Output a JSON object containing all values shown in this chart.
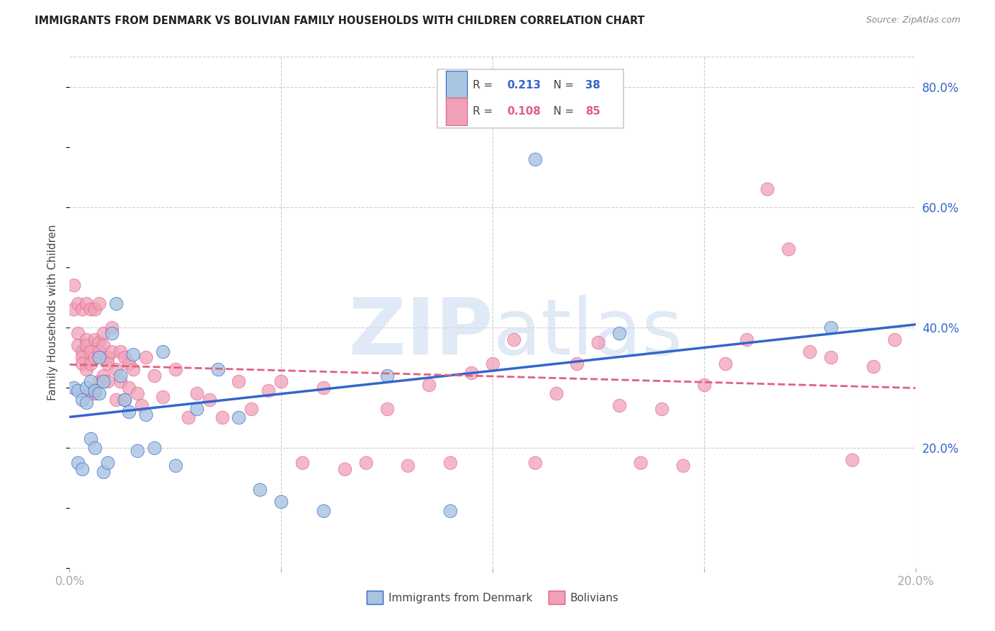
{
  "title": "IMMIGRANTS FROM DENMARK VS BOLIVIAN FAMILY HOUSEHOLDS WITH CHILDREN CORRELATION CHART",
  "source": "Source: ZipAtlas.com",
  "ylabel": "Family Households with Children",
  "xmin": 0.0,
  "xmax": 0.2,
  "ymin": 0.0,
  "ymax": 0.85,
  "color_denmark": "#a8c4e0",
  "color_bolivia": "#f0a0b8",
  "color_line_denmark": "#3366cc",
  "color_line_bolivia": "#e06080",
  "legend_label1": "Immigrants from Denmark",
  "legend_label2": "Bolivians",
  "denmark_x": [
    0.001,
    0.002,
    0.002,
    0.003,
    0.003,
    0.004,
    0.004,
    0.005,
    0.005,
    0.006,
    0.006,
    0.007,
    0.007,
    0.008,
    0.008,
    0.009,
    0.01,
    0.011,
    0.012,
    0.013,
    0.014,
    0.015,
    0.016,
    0.018,
    0.02,
    0.022,
    0.025,
    0.03,
    0.035,
    0.04,
    0.045,
    0.05,
    0.06,
    0.075,
    0.09,
    0.11,
    0.13,
    0.18
  ],
  "denmark_y": [
    0.3,
    0.295,
    0.175,
    0.165,
    0.28,
    0.3,
    0.275,
    0.31,
    0.215,
    0.295,
    0.2,
    0.35,
    0.29,
    0.31,
    0.16,
    0.175,
    0.39,
    0.44,
    0.32,
    0.28,
    0.26,
    0.355,
    0.195,
    0.255,
    0.2,
    0.36,
    0.17,
    0.265,
    0.33,
    0.25,
    0.13,
    0.11,
    0.095,
    0.32,
    0.095,
    0.68,
    0.39,
    0.4
  ],
  "bolivia_x": [
    0.001,
    0.001,
    0.002,
    0.002,
    0.002,
    0.003,
    0.003,
    0.003,
    0.003,
    0.004,
    0.004,
    0.004,
    0.004,
    0.005,
    0.005,
    0.005,
    0.005,
    0.006,
    0.006,
    0.006,
    0.006,
    0.007,
    0.007,
    0.007,
    0.007,
    0.008,
    0.008,
    0.008,
    0.009,
    0.009,
    0.009,
    0.01,
    0.01,
    0.011,
    0.011,
    0.012,
    0.012,
    0.013,
    0.013,
    0.014,
    0.014,
    0.015,
    0.016,
    0.017,
    0.018,
    0.02,
    0.022,
    0.025,
    0.028,
    0.03,
    0.033,
    0.036,
    0.04,
    0.043,
    0.047,
    0.05,
    0.055,
    0.06,
    0.065,
    0.07,
    0.075,
    0.08,
    0.085,
    0.09,
    0.095,
    0.1,
    0.105,
    0.11,
    0.115,
    0.12,
    0.125,
    0.13,
    0.135,
    0.14,
    0.145,
    0.15,
    0.155,
    0.16,
    0.165,
    0.17,
    0.175,
    0.18,
    0.185,
    0.19,
    0.195
  ],
  "bolivia_y": [
    0.43,
    0.47,
    0.39,
    0.37,
    0.44,
    0.36,
    0.35,
    0.34,
    0.43,
    0.38,
    0.37,
    0.33,
    0.44,
    0.36,
    0.34,
    0.29,
    0.43,
    0.38,
    0.35,
    0.29,
    0.43,
    0.375,
    0.36,
    0.31,
    0.44,
    0.39,
    0.37,
    0.32,
    0.35,
    0.34,
    0.31,
    0.4,
    0.36,
    0.33,
    0.28,
    0.36,
    0.31,
    0.35,
    0.28,
    0.34,
    0.3,
    0.33,
    0.29,
    0.27,
    0.35,
    0.32,
    0.285,
    0.33,
    0.25,
    0.29,
    0.28,
    0.25,
    0.31,
    0.265,
    0.295,
    0.31,
    0.175,
    0.3,
    0.165,
    0.175,
    0.265,
    0.17,
    0.305,
    0.175,
    0.325,
    0.34,
    0.38,
    0.175,
    0.29,
    0.34,
    0.375,
    0.27,
    0.175,
    0.265,
    0.17,
    0.305,
    0.34,
    0.38,
    0.63,
    0.53,
    0.36,
    0.35,
    0.18,
    0.335,
    0.38
  ]
}
